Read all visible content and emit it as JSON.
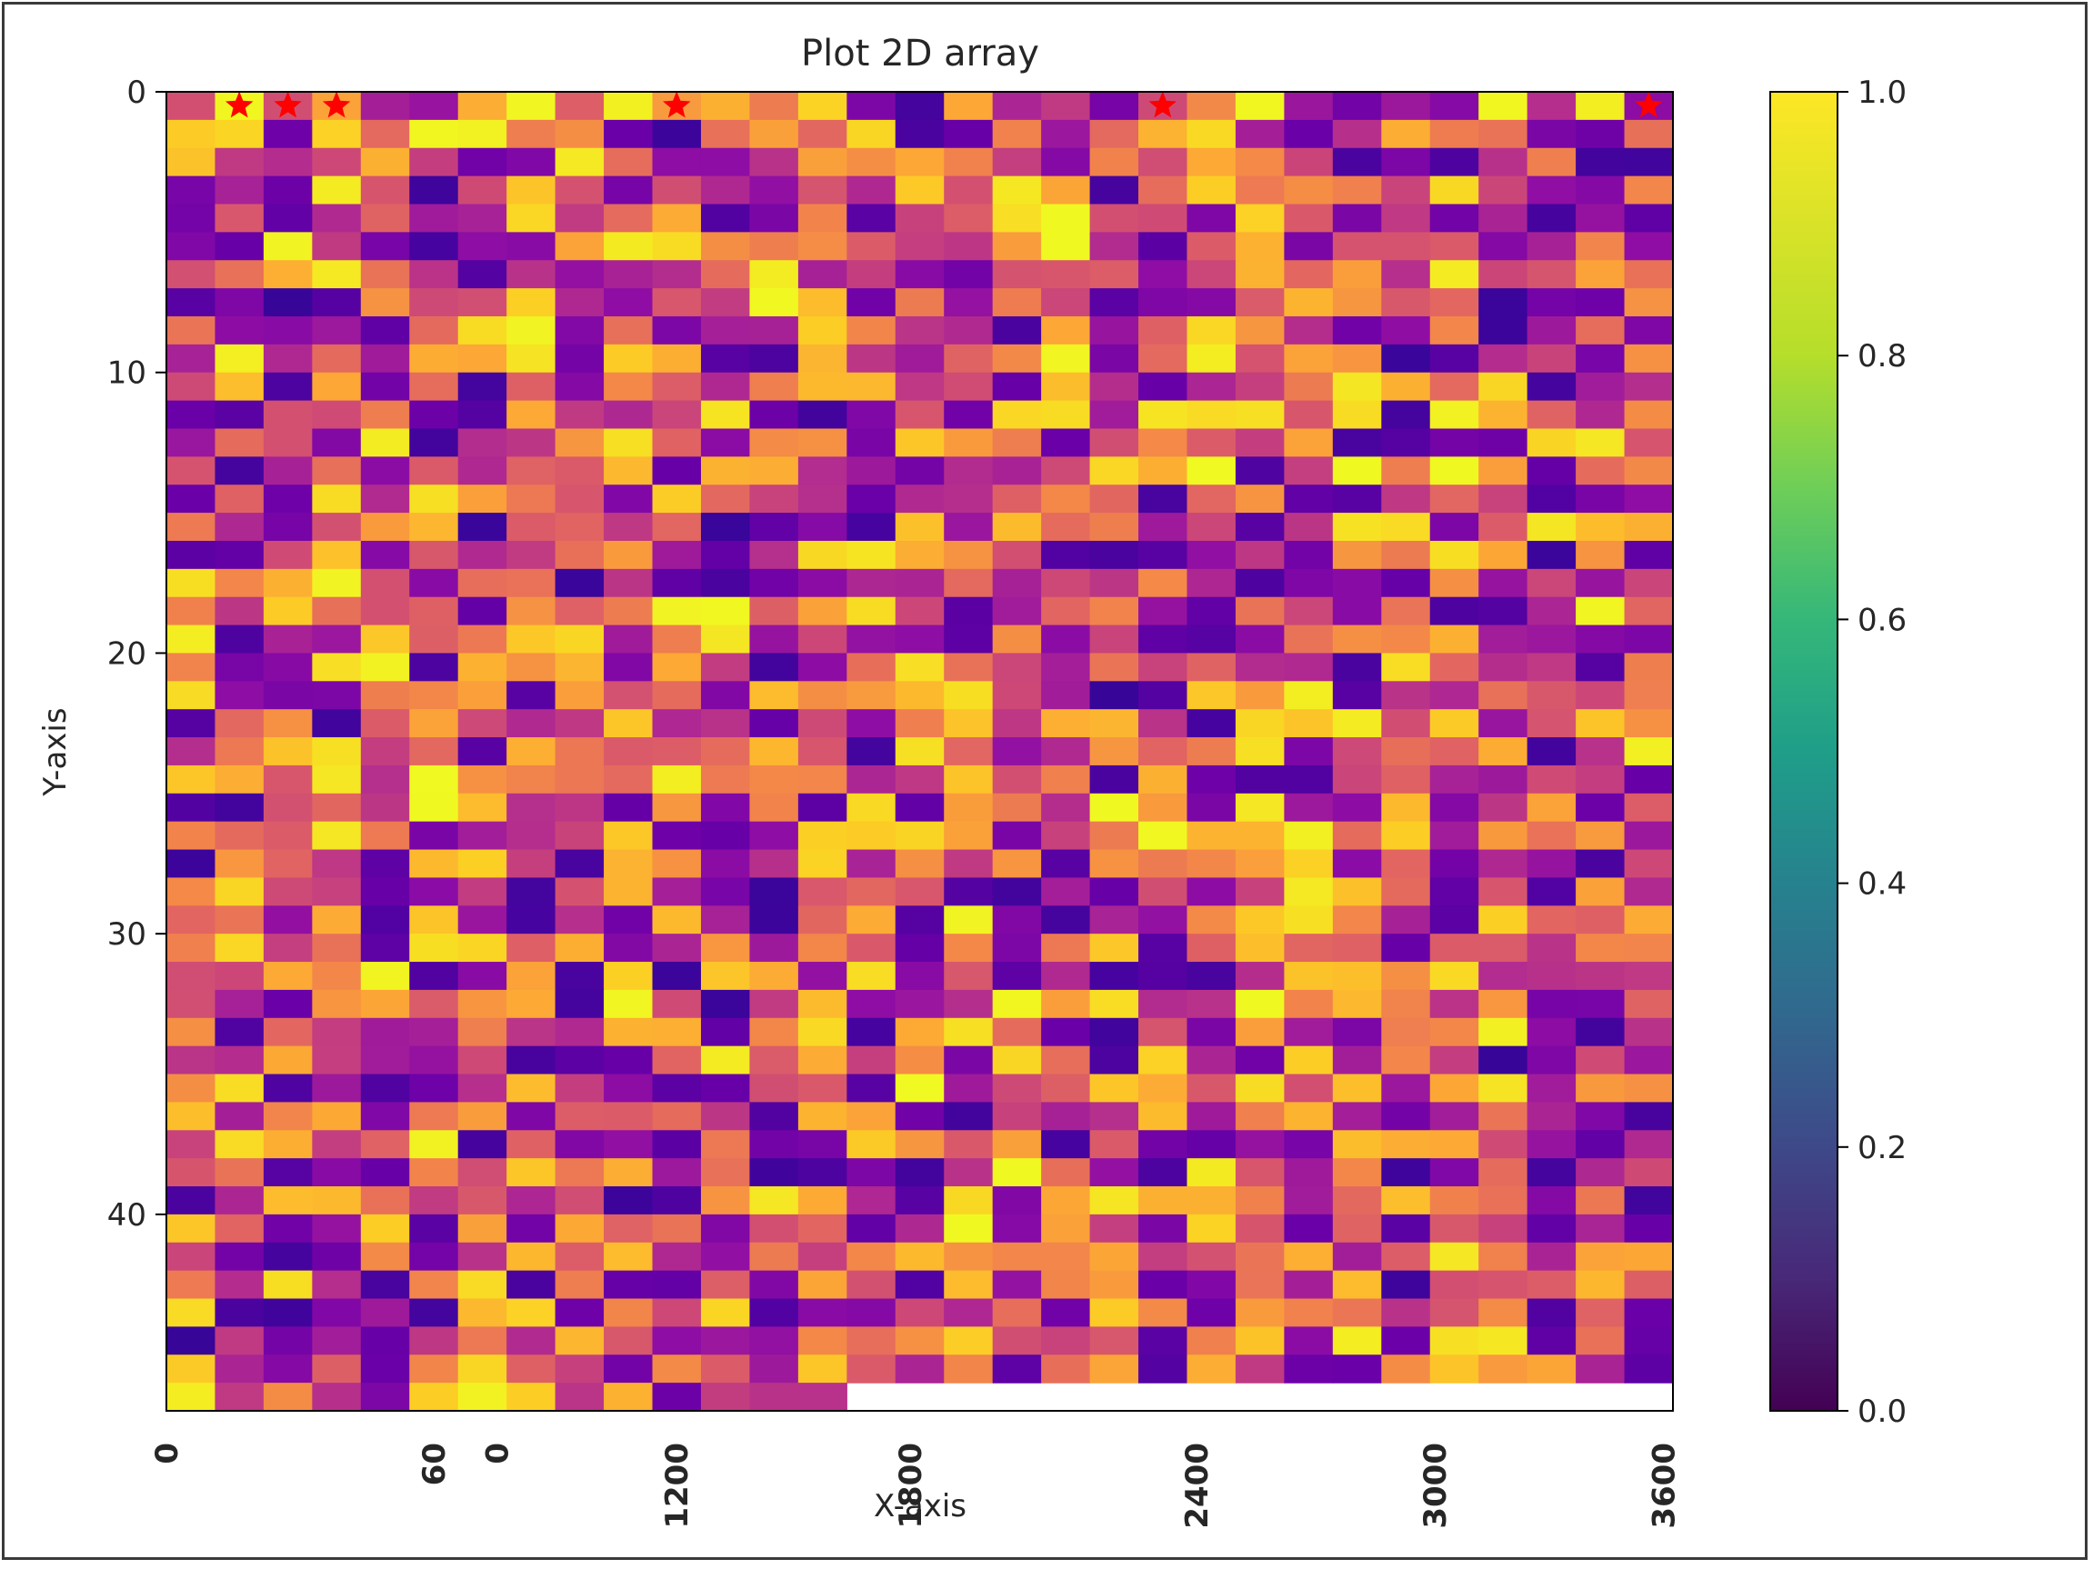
{
  "chart_data": {
    "type": "heatmap",
    "title": "Plot 2D array",
    "xlabel": "X-axis",
    "ylabel": "Y-axis",
    "n_cols": 31,
    "n_rows": 47,
    "last_row_filled_cols": 14,
    "colormap": "plasma",
    "value_range": [
      0,
      1
    ],
    "values_note": "random values in [0,1]",
    "y_ticks": [
      "0",
      "10",
      "20",
      "30",
      "40"
    ],
    "y_tick_values": [
      0,
      10,
      20,
      30,
      40
    ],
    "x_tick_labels": [
      "0",
      "60",
      "0",
      "1200",
      "1800",
      "2400",
      "3000",
      "3600"
    ],
    "x_tick_cols": [
      0,
      5.5,
      6.8,
      10.5,
      15.3,
      21.2,
      26.1,
      30.8
    ],
    "markers": {
      "symbol": "star",
      "color": "#ff0000",
      "row": 0.5,
      "cols": [
        1.5,
        2.5,
        3.5,
        10.5,
        20.5,
        30.5
      ]
    },
    "colorbar": {
      "colormap": "viridis",
      "ticks": [
        "0.0",
        "0.2",
        "0.4",
        "0.6",
        "0.8",
        "1.0"
      ],
      "tick_values": [
        0,
        0.2,
        0.4,
        0.6,
        0.8,
        1.0
      ]
    }
  }
}
